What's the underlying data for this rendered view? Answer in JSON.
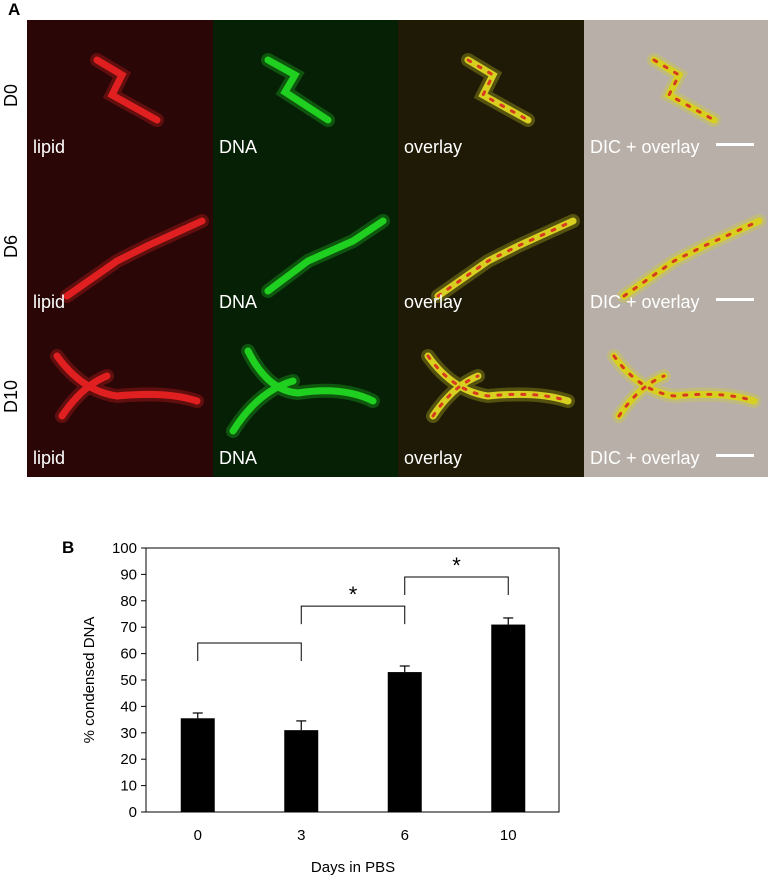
{
  "panel_a": {
    "letter": "A",
    "rows": [
      {
        "label": "D0",
        "cells": [
          "lipid",
          "DNA",
          "overlay",
          "DIC + overlay"
        ]
      },
      {
        "label": "D6",
        "cells": [
          "lipid",
          "DNA",
          "overlay",
          "DIC + overlay"
        ]
      },
      {
        "label": "D10",
        "cells": [
          "lipid",
          "DNA",
          "overlay",
          "DIC + overlay"
        ]
      }
    ]
  },
  "panel_b": {
    "letter": "B",
    "significance_mark": "*"
  },
  "chart_data": {
    "type": "bar",
    "categories": [
      "0",
      "3",
      "6",
      "10"
    ],
    "values": [
      35.5,
      31,
      53,
      71
    ],
    "errors": [
      2.0,
      3.5,
      2.3,
      2.5
    ],
    "xlabel": "Days in PBS",
    "ylabel": "% condensed DNA",
    "ylim": [
      0,
      100
    ],
    "yticks": [
      0,
      10,
      20,
      30,
      40,
      50,
      60,
      70,
      80,
      90,
      100
    ],
    "grid": false,
    "bar_color": "#000000",
    "brackets": [
      {
        "from": "0",
        "to": "3",
        "level": 64,
        "label": ""
      },
      {
        "from": "3",
        "to": "6",
        "level": 78,
        "label": "*"
      },
      {
        "from": "6",
        "to": "10",
        "level": 89,
        "label": "*"
      }
    ]
  },
  "colors": {
    "lipid": "#e02020",
    "dna": "#20d020",
    "overlay": "#d8d020",
    "dic_background": "#b8b0a8"
  }
}
